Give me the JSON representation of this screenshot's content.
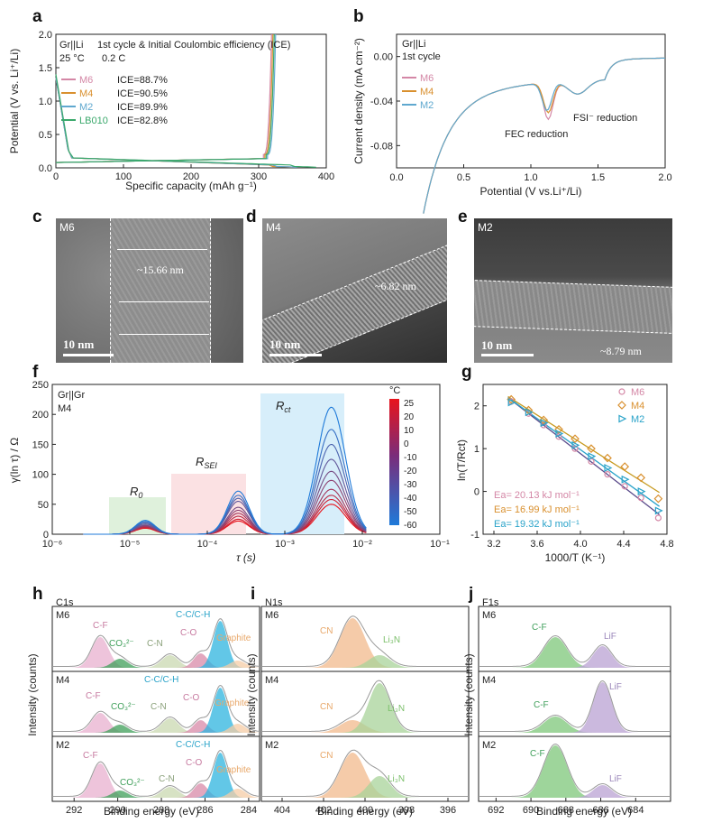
{
  "panels": {
    "a": "a",
    "b": "b",
    "c": "c",
    "d": "d",
    "e": "e",
    "f": "f",
    "g": "g",
    "h": "h",
    "i": "i",
    "j": "j"
  },
  "colors": {
    "M6": "#d487a6",
    "M4": "#d9902f",
    "M2": "#5fa8cf",
    "LB010": "#3aa86b",
    "CF": "#e8b0cf",
    "CO3": "#3f9f5a",
    "CN": "#f2b98c",
    "CO": "#d88aa8",
    "CC": "#2eb4df",
    "graphite": "#f5cca5",
    "Li3N": "#a8d39a",
    "LiF": "#b9a2d3"
  },
  "panel_a": {
    "header_line1_cell": "Gr||Li",
    "header_line1_text": "1st cycle & Initial Coulombic efficiency (ICE)",
    "header_line2_temp": "25 °C",
    "header_line2_rate": "0.2 C",
    "xlabel": "Specific capacity (mAh g⁻¹)",
    "ylabel": "Potential (V vs. Li⁺/Li)",
    "legend": [
      {
        "name": "M6",
        "ice": "ICE=88.7%"
      },
      {
        "name": "M4",
        "ice": "ICE=90.5%"
      },
      {
        "name": "M2",
        "ice": "ICE=89.9%"
      },
      {
        "name": "LB010",
        "ice": "ICE=82.8%"
      }
    ]
  },
  "panel_b": {
    "line1": "Gr||Li",
    "line2": "1st cycle",
    "xlabel": "Potential (V vs.Li⁺/Li)",
    "ylabel": "Current density (mA cm⁻²)",
    "legend": [
      "M6",
      "M4",
      "M2"
    ],
    "ann_fec": "FEC  reduction",
    "ann_fsi": "FSI⁻ reduction"
  },
  "panel_c": {
    "label": "M6",
    "scale": "10 nm",
    "thickness": "~15.66  nm"
  },
  "panel_d": {
    "label": "M4",
    "scale": "10 nm",
    "thickness": "~6.82  nm"
  },
  "panel_e": {
    "label": "M2",
    "scale": "10 nm",
    "thickness": "~8.79  nm"
  },
  "panel_f": {
    "line1": "Gr||Gr",
    "line2": "M4",
    "xlabel": "τ (s)",
    "ylabel": "γ(ln τ) / Ω",
    "regions": [
      "R0",
      "RSEI",
      "Rct"
    ],
    "colorbar_unit": "°C",
    "colorbar_ticks": [
      "25",
      "20",
      "10",
      "0",
      "-10",
      "-20",
      "-30",
      "-40",
      "-50",
      "-60"
    ]
  },
  "panel_g": {
    "xlabel": "1000/T (K⁻¹)",
    "ylabel": "ln(T/Rct)",
    "legend": [
      "M6",
      "M4",
      "M2"
    ],
    "ea": [
      "Ea= 20.13 kJ mol⁻¹",
      "Ea= 16.99 kJ mol⁻¹",
      "Ea= 19.32 kJ mol⁻¹"
    ]
  },
  "panel_h": {
    "element": "C1s",
    "rows": [
      "M6",
      "M4",
      "M2"
    ],
    "xlabel": "Binding energy (eV)",
    "ylabel": "Intensity (counts)",
    "peaks": {
      "cf": "C-F",
      "co3": "CO₃²⁻",
      "cn": "C-N",
      "co": "C-O",
      "cc": "C-C/C-H",
      "graphite": "Graphite"
    }
  },
  "panel_i": {
    "element": "N1s",
    "rows": [
      "M6",
      "M4",
      "M2"
    ],
    "xlabel": "Binding energy (eV)",
    "ylabel": "Intensity (counts)",
    "peaks": {
      "cn": "CN",
      "li3n": "Li₃N"
    }
  },
  "panel_j": {
    "element": "F1s",
    "rows": [
      "M6",
      "M4",
      "M2"
    ],
    "xlabel": "Binding energy (eV)",
    "ylabel": "Intensity (counts)",
    "peaks": {
      "cf": "C-F",
      "lif": "LiF"
    }
  },
  "chart_data": [
    {
      "panel": "a",
      "type": "line",
      "xlim": [
        0,
        400
      ],
      "ylim": [
        0.0,
        2.0
      ],
      "xticks": [
        "0",
        "100",
        "200",
        "300",
        "400"
      ],
      "yticks": [
        "0.0",
        "0.5",
        "1.0",
        "1.5",
        "2.0"
      ],
      "series": [
        {
          "name": "M6",
          "discharge_capacity": 355,
          "charge_capacity": 315
        },
        {
          "name": "M4",
          "discharge_capacity": 350,
          "charge_capacity": 317
        },
        {
          "name": "M2",
          "discharge_capacity": 357,
          "charge_capacity": 321
        },
        {
          "name": "LB010",
          "discharge_capacity": 385,
          "charge_capacity": 319
        }
      ]
    },
    {
      "panel": "b",
      "type": "line",
      "xlim": [
        0.0,
        2.0
      ],
      "ylim": [
        -0.1,
        0.02
      ],
      "xticks": [
        "0.0",
        "0.5",
        "1.0",
        "1.5",
        "2.0"
      ],
      "yticks": [
        "0.00",
        "-0.04",
        "-0.08"
      ],
      "series": [
        {
          "name": "M6",
          "peak_fec_potential": 1.13,
          "peak_fec_current": -0.053
        },
        {
          "name": "M4",
          "peak_fec_potential": 1.13,
          "peak_fec_current": -0.047
        },
        {
          "name": "M2",
          "peak_fec_potential": 1.12,
          "peak_fec_current": -0.045
        }
      ]
    },
    {
      "panel": "f",
      "type": "line",
      "x_scale": "log",
      "xlim": [
        -6,
        -1
      ],
      "ylim": [
        0,
        250
      ],
      "xticks": [
        "10⁻⁶",
        "10⁻⁵",
        "10⁻⁴",
        "10⁻³",
        "10⁻²",
        "10⁻¹"
      ],
      "yticks": [
        "0",
        "50",
        "100",
        "150",
        "200",
        "250"
      ],
      "temperatures_C": [
        25,
        20,
        10,
        0,
        -10,
        -20,
        -30,
        -40,
        -50,
        -60
      ],
      "peak_positions_log_tau": [
        -4.8,
        -3.6,
        -2.4
      ],
      "peak_heights_R0": [
        10,
        11,
        12,
        13,
        14,
        15,
        17,
        19,
        21,
        23
      ],
      "peak_heights_RSEI": [
        22,
        25,
        30,
        35,
        40,
        45,
        55,
        60,
        65,
        72
      ],
      "peak_heights_Rct": [
        50,
        58,
        65,
        75,
        90,
        105,
        125,
        150,
        175,
        212
      ]
    },
    {
      "panel": "g",
      "type": "scatter",
      "xlim": [
        3.1,
        4.8
      ],
      "ylim": [
        -1.0,
        2.5
      ],
      "xticks": [
        "3.2",
        "3.6",
        "4.0",
        "4.4",
        "4.8"
      ],
      "yticks": [
        "-1",
        "0",
        "1",
        "2"
      ],
      "x": [
        3.36,
        3.52,
        3.66,
        3.8,
        3.95,
        4.1,
        4.25,
        4.41,
        4.56,
        4.72
      ],
      "series": [
        {
          "name": "M6",
          "y": [
            2.1,
            1.82,
            1.55,
            1.28,
            1.0,
            0.7,
            0.4,
            0.12,
            -0.15,
            -0.62
          ]
        },
        {
          "name": "M4",
          "y": [
            2.15,
            1.9,
            1.67,
            1.45,
            1.23,
            1.0,
            0.78,
            0.58,
            0.32,
            -0.17
          ]
        },
        {
          "name": "M2",
          "y": [
            2.08,
            1.85,
            1.6,
            1.35,
            1.08,
            0.82,
            0.55,
            0.28,
            0.0,
            -0.45
          ]
        }
      ]
    },
    {
      "panel": "h",
      "type": "line",
      "xlim": [
        293,
        283.5
      ],
      "xticks": [
        "292",
        "290",
        "288",
        "286",
        "284"
      ],
      "peak_positions_eV": {
        "C-F": 290.8,
        "CO3": 289.9,
        "C-N": 287.6,
        "C-O": 286.2,
        "C-C/C-H": 285.3,
        "Graphite": 284.5
      }
    },
    {
      "panel": "i",
      "type": "line",
      "xlim": [
        405,
        395
      ],
      "xticks": [
        "404",
        "402",
        "400",
        "398",
        "396"
      ],
      "peak_positions_eV": {
        "CN": 400.6,
        "Li3N": 399.3
      }
    },
    {
      "panel": "j",
      "type": "line",
      "xlim": [
        693,
        682
      ],
      "xticks": [
        "692",
        "690",
        "688",
        "686",
        "684"
      ],
      "peak_positions_eV": {
        "C-F": 688.6,
        "LiF": 685.9
      }
    }
  ]
}
